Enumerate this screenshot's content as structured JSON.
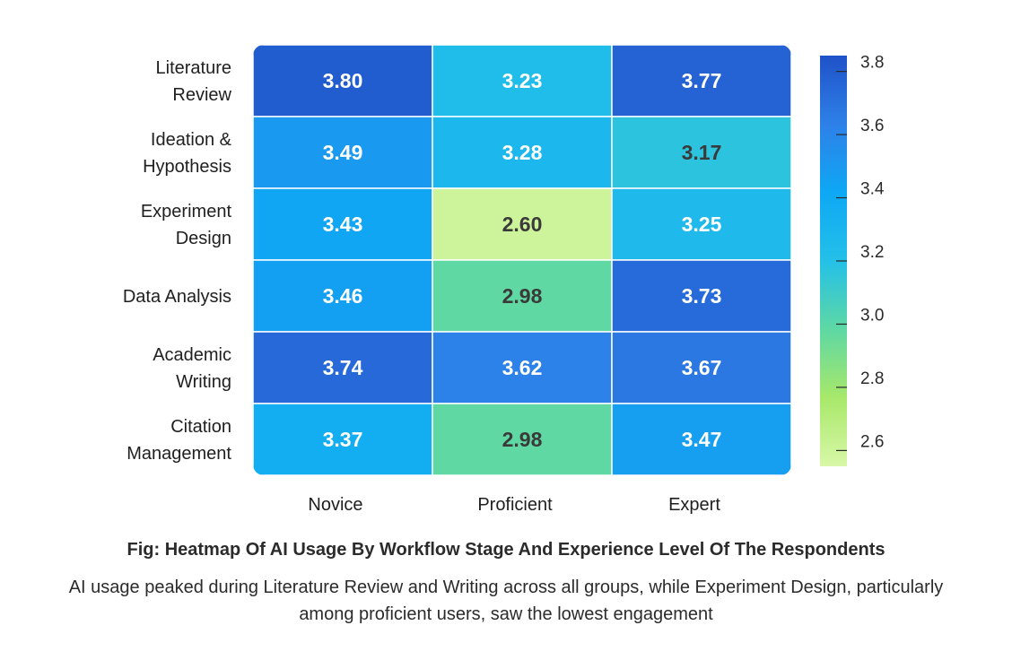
{
  "chart_data": {
    "type": "heatmap",
    "title": "",
    "xlabel": "",
    "ylabel": "",
    "rows": [
      [
        "Literature",
        "Review"
      ],
      [
        "Ideation &",
        "Hypothesis"
      ],
      [
        "Experiment",
        "Design"
      ],
      [
        "Data Analysis"
      ],
      [
        "Academic",
        "Writing"
      ],
      [
        "Citation",
        "Management"
      ]
    ],
    "columns": [
      "Novice",
      "Proficient",
      "Expert"
    ],
    "values": [
      [
        3.8,
        3.23,
        3.77
      ],
      [
        3.49,
        3.28,
        3.17
      ],
      [
        3.43,
        2.6,
        3.25
      ],
      [
        3.46,
        2.98,
        3.73
      ],
      [
        3.74,
        3.62,
        3.67
      ],
      [
        3.37,
        2.98,
        3.47
      ]
    ],
    "value_labels": [
      [
        "3.80",
        "3.23",
        "3.77"
      ],
      [
        "3.49",
        "3.28",
        "3.17"
      ],
      [
        "3.43",
        "2.60",
        "3.25"
      ],
      [
        "3.46",
        "2.98",
        "3.73"
      ],
      [
        "3.74",
        "3.62",
        "3.67"
      ],
      [
        "3.37",
        "2.98",
        "3.47"
      ]
    ],
    "colorbar": {
      "min": 2.55,
      "max": 3.85,
      "ticks": [
        3.8,
        3.6,
        3.4,
        3.2,
        3.0,
        2.8,
        2.6
      ],
      "tick_labels": [
        "3.8",
        "3.6",
        "3.4",
        "3.2",
        "3.0",
        "2.8",
        "2.6"
      ],
      "colors": [
        "#d8f8a8",
        "#a8e86a",
        "#5ed8a4",
        "#24c0e8",
        "#0ea8f4",
        "#2e80e8",
        "#1f52c8"
      ]
    },
    "text_colors": {
      "light": "#ffffff",
      "dark": "#3a3a3a"
    }
  },
  "caption": {
    "title": "Fig: Heatmap Of AI Usage By Workflow Stage And Experience Level Of The Respondents",
    "body": "AI usage peaked during Literature Review and Writing across all groups, while Experiment Design, particularly among proficient users, saw the lowest engagement"
  }
}
